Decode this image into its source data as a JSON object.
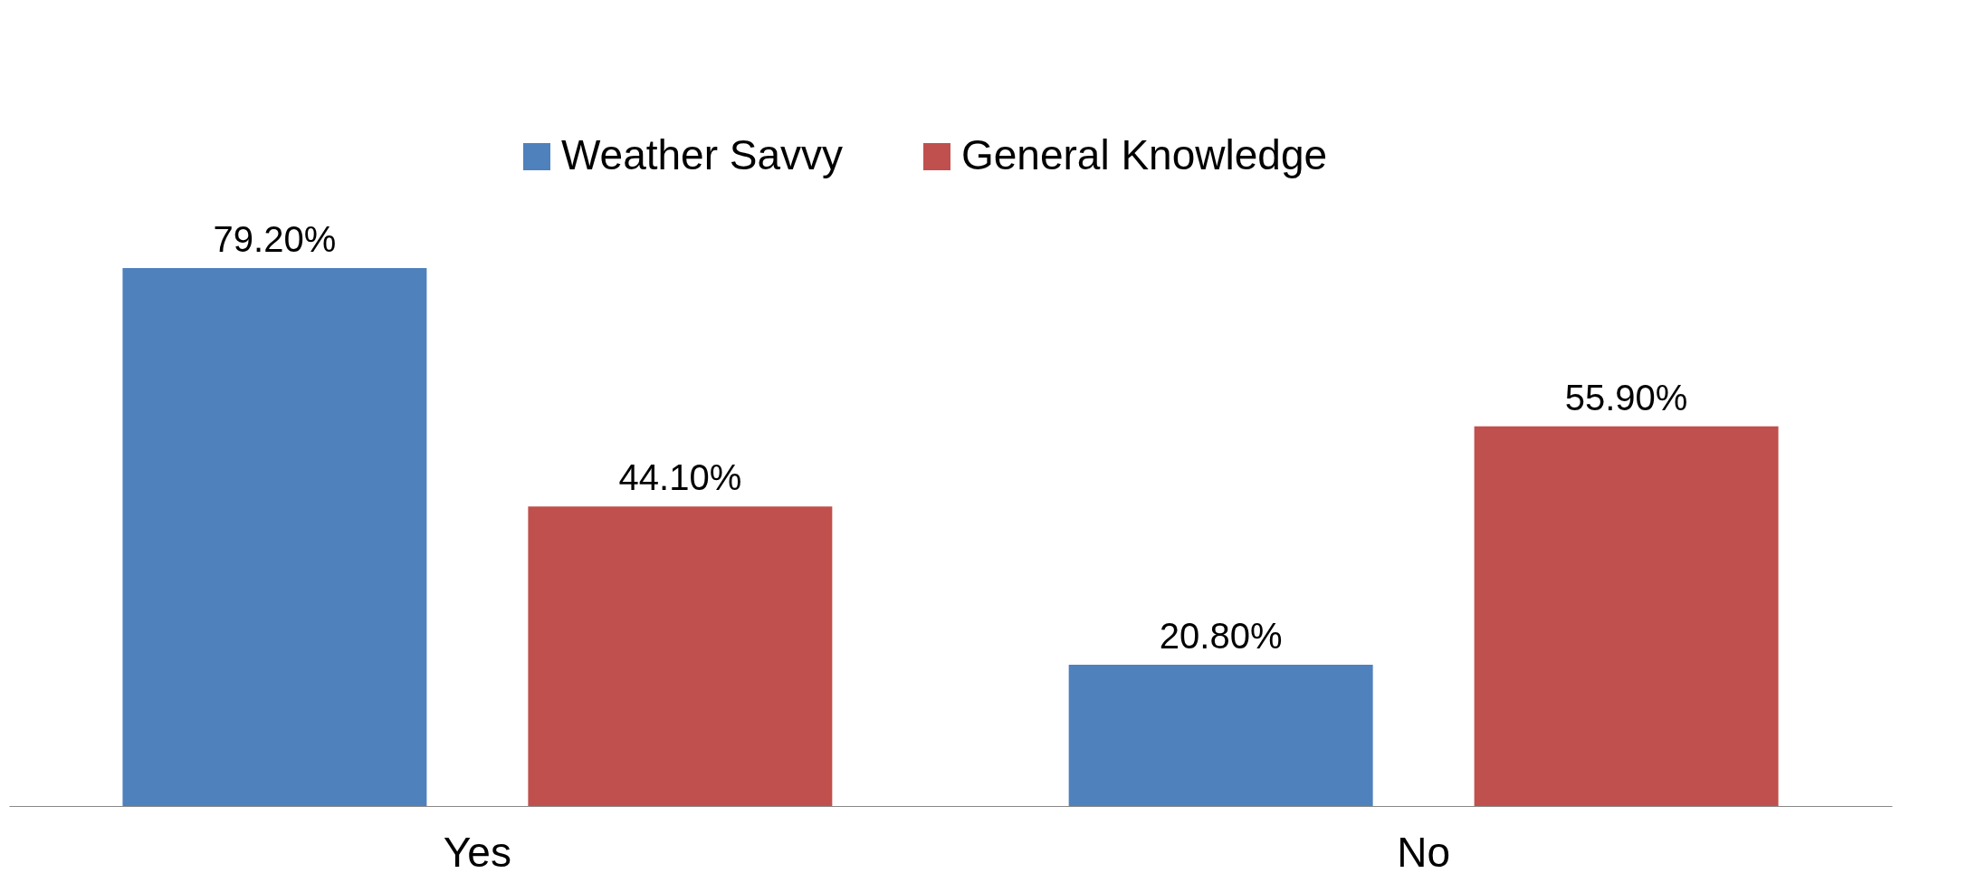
{
  "chart_data": {
    "type": "bar",
    "categories": [
      "Yes",
      "No"
    ],
    "series": [
      {
        "name": "Weather Savvy",
        "color": "#4f81bd",
        "values": [
          79.2,
          20.8
        ],
        "value_labels": [
          "79.20%",
          "20.80%"
        ]
      },
      {
        "name": "General Knowledge",
        "color": "#c0504d",
        "values": [
          44.1,
          55.9
        ],
        "value_labels": [
          "44.10%",
          "55.90%"
        ]
      }
    ],
    "legend": "top",
    "grid": false
  }
}
